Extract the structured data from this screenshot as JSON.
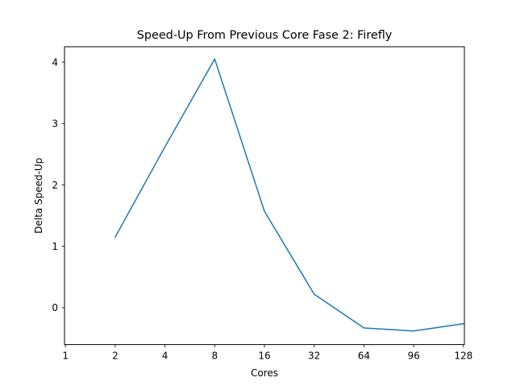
{
  "chart_data": {
    "type": "line",
    "title": "Speed-Up From Previous Core Fase 2: Firefly",
    "xlabel": "Cores",
    "ylabel": "Delta Speed-Up",
    "categories": [
      "1",
      "2",
      "4",
      "8",
      "16",
      "32",
      "64",
      "96",
      "128"
    ],
    "series": [
      {
        "values": [
          null,
          1.15,
          2.62,
          4.05,
          1.57,
          0.22,
          -0.33,
          -0.38,
          -0.26
        ],
        "color": "#1f77b4"
      }
    ],
    "ylim": [
      -0.6,
      4.25
    ],
    "yticks": [
      0,
      1,
      2,
      3,
      4
    ],
    "ytick_labels": [
      "0",
      "1",
      "2",
      "3",
      "4"
    ],
    "grid": false,
    "legend": "none"
  }
}
